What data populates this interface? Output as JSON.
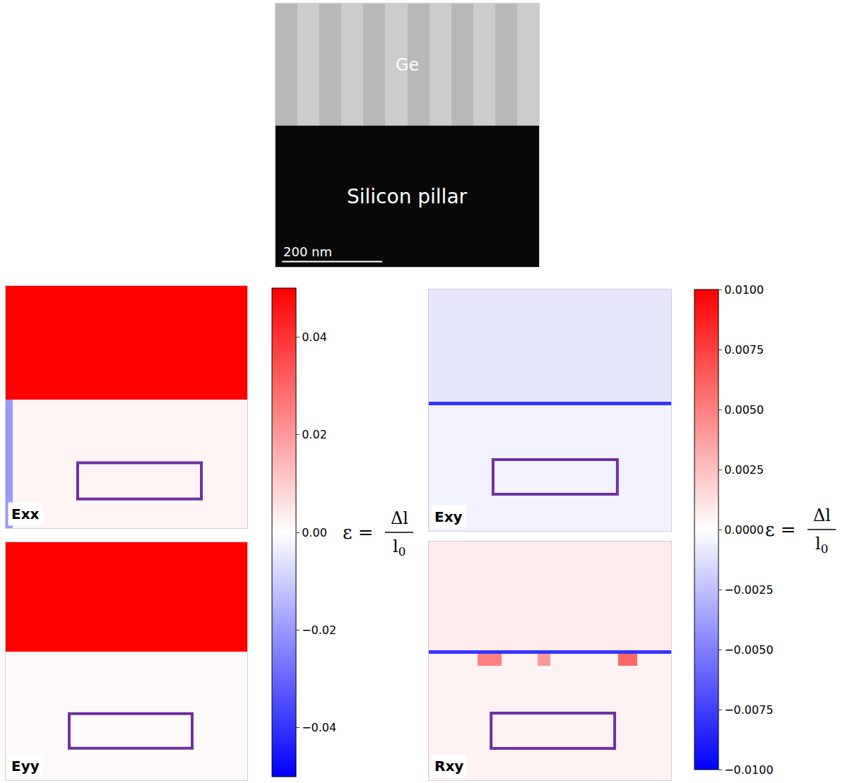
{
  "chart_data": [
    {
      "type": "image",
      "x": [
        0,
        0.0833,
        0.1667,
        0.25,
        0.3333,
        0.4167,
        0.5,
        0.5833,
        0.6667,
        0.75,
        0.8333,
        0.9167,
        1
      ],
      "y": [
        0,
        0.535,
        1
      ],
      "z": [
        [
          0.03,
          0.03,
          0.03,
          0.03,
          0.03,
          0.03,
          0.03,
          0.03,
          0.03,
          0.03,
          0.03,
          0.03
        ],
        [
          0.72,
          0.8,
          0.72,
          0.8,
          0.72,
          0.8,
          0.72,
          0.8,
          0.72,
          0.8,
          0.72,
          0.8
        ]
      ],
      "zlim": [
        0,
        1
      ],
      "xlim": [
        0,
        1
      ],
      "ylim": [
        0,
        1
      ],
      "tick_labels": false,
      "row_labels": [
        "Silicon pillar",
        "Ge"
      ],
      "scale_bar": {
        "label": "200 nm",
        "length": 0.38
      }
    },
    {
      "type": "heatmap",
      "title": "Exx",
      "x": [
        0,
        0.03,
        1
      ],
      "y": [
        0,
        0.53,
        1
      ],
      "z": [
        [
          -0.02,
          0.002
        ],
        [
          0.05,
          0.05
        ]
      ],
      "zlim": [
        -0.05,
        0.05
      ],
      "xlim": [
        0,
        1
      ],
      "ylim": [
        0,
        1
      ],
      "tick_labels": false,
      "box": {
        "x": [
          0.298,
          0.81
        ],
        "y": [
          0.12,
          0.27
        ],
        "color": "#7030a0"
      }
    },
    {
      "type": "heatmap",
      "title": "Eyy",
      "x": [
        0,
        1
      ],
      "y": [
        0,
        0.54,
        1
      ],
      "z": [
        [
          0.001
        ],
        [
          0.05
        ]
      ],
      "zlim": [
        -0.05,
        0.05
      ],
      "xlim": [
        0,
        1
      ],
      "ylim": [
        0,
        1
      ],
      "tick_labels": false,
      "box": {
        "x": [
          0.263,
          0.772
        ],
        "y": [
          0.134,
          0.28
        ],
        "color": "#7030a0"
      },
      "colorbar": {
        "zlim": [
          -0.05,
          0.05
        ],
        "zticks": [
          {
            "value": -0.04,
            "label": "−0.04"
          },
          {
            "value": -0.02,
            "label": "−0.02"
          },
          {
            "value": 0,
            "label": "0.00"
          },
          0.02,
          0.04
        ],
        "formula": {
          "symbol": "ε =",
          "numerator": "Δl",
          "denominator": "l",
          "denominator_subscript": "0"
        }
      }
    },
    {
      "type": "heatmap",
      "title": "Exy",
      "x": [
        0,
        1
      ],
      "y": [
        0,
        0.52,
        0.535,
        1
      ],
      "z": [
        [
          -0.0005
        ],
        [
          -0.008
        ],
        [
          -0.001
        ]
      ],
      "zlim": [
        -0.01,
        0.01
      ],
      "xlim": [
        0,
        1
      ],
      "ylim": [
        0,
        1
      ],
      "tick_labels": false,
      "box": {
        "x": [
          0.265,
          0.778
        ],
        "y": [
          0.152,
          0.295
        ],
        "color": "#7030a0"
      }
    },
    {
      "type": "heatmap",
      "title": "Rxy",
      "x": [
        0,
        0.2,
        0.3,
        0.45,
        0.5,
        0.78,
        0.86,
        1
      ],
      "y": [
        0,
        0.48,
        0.53,
        0.545,
        1
      ],
      "z": [
        [
          0.0005,
          0.0005,
          0.0005,
          0.0005,
          0.0005,
          0.0005,
          0.0005
        ],
        [
          0.0005,
          0.005,
          0.0005,
          0.004,
          0.0005,
          0.006,
          0.0005
        ],
        [
          -0.008,
          -0.008,
          -0.008,
          -0.008,
          -0.008,
          -0.008,
          -0.008
        ],
        [
          0.0008,
          0.0008,
          0.0008,
          0.0008,
          0.0008,
          0.0008,
          0.0008
        ]
      ],
      "zlim": [
        -0.01,
        0.01
      ],
      "xlim": [
        0,
        1
      ],
      "ylim": [
        0,
        1
      ],
      "tick_labels": false,
      "box": {
        "x": [
          0.257,
          0.767
        ],
        "y": [
          0.133,
          0.281
        ],
        "color": "#7030a0"
      },
      "colorbar": {
        "zlim": [
          -0.01,
          0.01
        ],
        "zticks": [
          {
            "value": -0.01,
            "label": "−0.0100"
          },
          {
            "value": -0.0075,
            "label": "−0.0075"
          },
          {
            "value": -0.005,
            "label": "−0.0050"
          },
          {
            "value": -0.0025,
            "label": "−0.0025"
          },
          {
            "value": 0,
            "label": "0.0000"
          },
          {
            "value": 0.0025,
            "label": "0.0025"
          },
          {
            "value": 0.005,
            "label": "0.0050"
          },
          {
            "value": 0.0075,
            "label": "0.0075"
          },
          {
            "value": 0.01,
            "label": "0.0100"
          }
        ],
        "formula": {
          "symbol": "ε =",
          "numerator": "Δl",
          "denominator": "l",
          "denominator_subscript": "0"
        }
      }
    }
  ]
}
